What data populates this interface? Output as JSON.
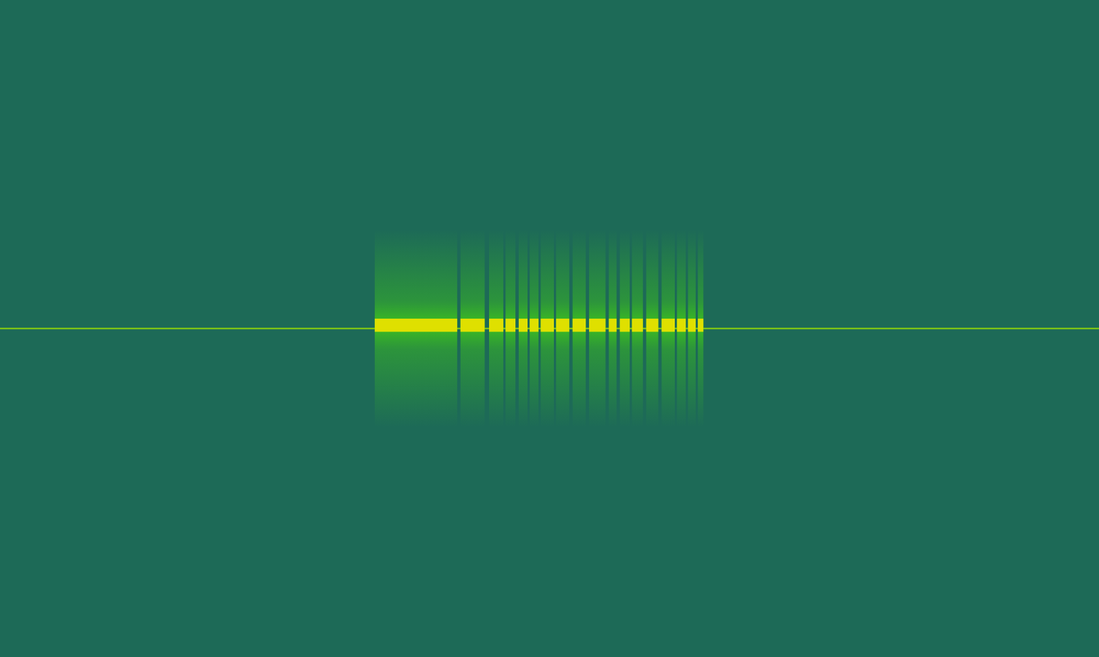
{
  "chart_data": {
    "type": "spectrogram",
    "xlim": [
      0,
      100
    ],
    "ylim": [
      -1,
      1
    ],
    "grid": false,
    "tick_labels": false,
    "carrier": {
      "y": 0,
      "color": "#8fd40a"
    },
    "burst": {
      "band": [
        -0.3,
        0.3
      ],
      "core": [
        -0.01,
        0.03
      ],
      "colors": [
        "#3fc81a",
        "#dfe000"
      ],
      "segments": [
        [
          34.1,
          41.6
        ],
        [
          41.9,
          44.1
        ],
        [
          44.5,
          45.8
        ],
        [
          46.0,
          46.9
        ],
        [
          47.2,
          48.0
        ],
        [
          48.2,
          49.0
        ],
        [
          49.2,
          50.4
        ],
        [
          50.6,
          51.8
        ],
        [
          52.1,
          53.3
        ],
        [
          53.6,
          55.1
        ],
        [
          55.4,
          56.1
        ],
        [
          56.4,
          57.3
        ],
        [
          57.5,
          58.5
        ],
        [
          58.8,
          59.9
        ],
        [
          60.2,
          61.4
        ],
        [
          61.6,
          62.4
        ],
        [
          62.6,
          63.3
        ],
        [
          63.5,
          64.0
        ]
      ]
    }
  }
}
